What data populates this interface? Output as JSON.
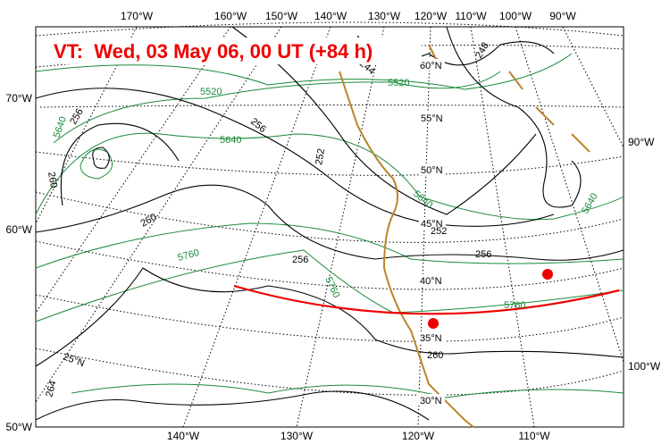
{
  "title": "VT:  Wed, 03 May 06, 00 UT (+84 h)",
  "top_labels": [
    "170°W",
    "160°W",
    "150°W",
    "140°W",
    "130°W",
    "120°W",
    "110°W",
    "100°W",
    "90°W"
  ],
  "left_labels": [
    "70°W",
    "60°W",
    "50°W"
  ],
  "right_labels": [
    "90°W",
    "100°W"
  ],
  "bottom_labels": [
    "140°W",
    "130°W",
    "120°W",
    "110°W"
  ],
  "latitude_labels": [
    "60°N",
    "55°N",
    "50°N",
    "45°N",
    "40°N",
    "35°N",
    "30°N",
    "25°N"
  ],
  "green_labels": [
    "5520",
    "5520",
    "5640",
    "5640",
    "5640",
    "5640",
    "5760",
    "5760",
    "5760"
  ],
  "black_labels": [
    "256",
    "256",
    "256",
    "256",
    "252",
    "252",
    "260",
    "260",
    "260",
    "264",
    "244",
    "248"
  ]
}
